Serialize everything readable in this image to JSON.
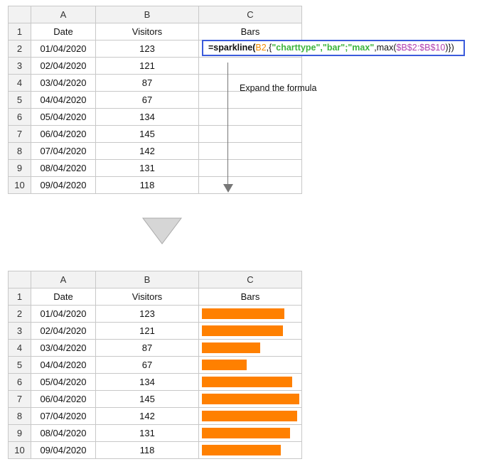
{
  "columns": {
    "corner": "",
    "a": "A",
    "b": "B",
    "c": "C"
  },
  "header": {
    "date": "Date",
    "visitors": "Visitors",
    "bars": "Bars"
  },
  "rows": [
    {
      "num": "2",
      "date": "01/04/2020",
      "visitors": "123",
      "value": 123
    },
    {
      "num": "3",
      "date": "02/04/2020",
      "visitors": "121",
      "value": 121
    },
    {
      "num": "4",
      "date": "03/04/2020",
      "visitors": "87",
      "value": 87
    },
    {
      "num": "5",
      "date": "04/04/2020",
      "visitors": "67",
      "value": 67
    },
    {
      "num": "6",
      "date": "05/04/2020",
      "visitors": "134",
      "value": 134
    },
    {
      "num": "7",
      "date": "06/04/2020",
      "visitors": "145",
      "value": 145
    },
    {
      "num": "8",
      "date": "07/04/2020",
      "visitors": "142",
      "value": 142
    },
    {
      "num": "9",
      "date": "08/04/2020",
      "visitors": "131",
      "value": 131
    },
    {
      "num": "10",
      "date": "09/04/2020",
      "visitors": "118",
      "value": 118
    }
  ],
  "header_row_num": "1",
  "formula": {
    "part1": "=sparkline(",
    "part2": "B2",
    "part3": ",{",
    "part4": "\"charttype\",\"bar\";\"max\"",
    "part5": ",max(",
    "part6": "$B$2:$B$10",
    "part7": ")})"
  },
  "annotation": "Expand the formula",
  "bar_color": "#ff8000",
  "chart_data": {
    "type": "bar",
    "categories": [
      "01/04/2020",
      "02/04/2020",
      "03/04/2020",
      "04/04/2020",
      "05/04/2020",
      "06/04/2020",
      "07/04/2020",
      "08/04/2020",
      "09/04/2020"
    ],
    "values": [
      123,
      121,
      87,
      67,
      134,
      145,
      142,
      131,
      118
    ],
    "xlim": [
      0,
      145
    ]
  }
}
